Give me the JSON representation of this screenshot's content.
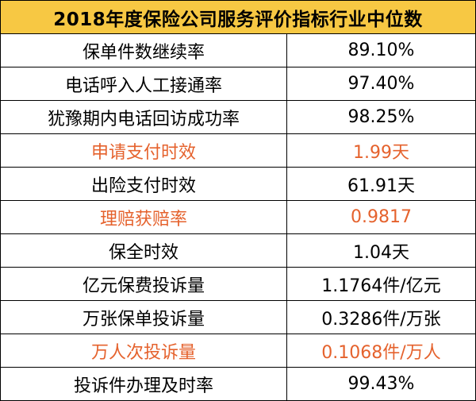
{
  "title": "2018年度保险公司服务评价指标行业中位数",
  "colors": {
    "header_bg": "#f7c843",
    "highlight_text": "#e5622d"
  },
  "rows": [
    {
      "label": "保单件数继续率",
      "value": "89.10%",
      "highlight": false
    },
    {
      "label": "电话呼入人工接通率",
      "value": "97.40%",
      "highlight": false
    },
    {
      "label": "犹豫期内电话回访成功率",
      "value": "98.25%",
      "highlight": false
    },
    {
      "label": "申请支付时效",
      "value": "1.99天",
      "highlight": true
    },
    {
      "label": "出险支付时效",
      "value": "61.91天",
      "highlight": false
    },
    {
      "label": "理赔获赔率",
      "value": "0.9817",
      "highlight": true
    },
    {
      "label": "保全时效",
      "value": "1.04天",
      "highlight": false
    },
    {
      "label": "亿元保费投诉量",
      "value": "1.1764件/亿元",
      "highlight": false
    },
    {
      "label": "万张保单投诉量",
      "value": "0.3286件/万张",
      "highlight": false
    },
    {
      "label": "万人次投诉量",
      "value": "0.1068件/万人",
      "highlight": true
    },
    {
      "label": "投诉件办理及时率",
      "value": "99.43%",
      "highlight": false
    }
  ]
}
